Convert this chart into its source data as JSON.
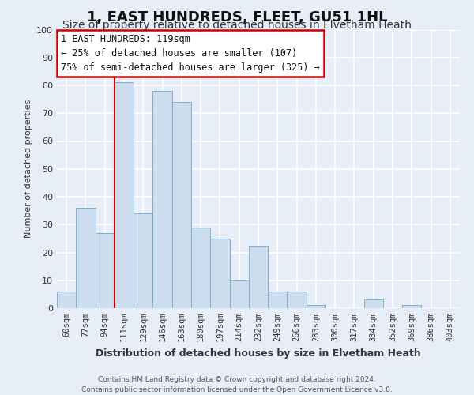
{
  "title": "1, EAST HUNDREDS, FLEET, GU51 1HL",
  "subtitle": "Size of property relative to detached houses in Elvetham Heath",
  "xlabel": "Distribution of detached houses by size in Elvetham Heath",
  "ylabel": "Number of detached properties",
  "bar_labels": [
    "60sqm",
    "77sqm",
    "94sqm",
    "111sqm",
    "129sqm",
    "146sqm",
    "163sqm",
    "180sqm",
    "197sqm",
    "214sqm",
    "232sqm",
    "249sqm",
    "266sqm",
    "283sqm",
    "300sqm",
    "317sqm",
    "334sqm",
    "352sqm",
    "369sqm",
    "386sqm",
    "403sqm"
  ],
  "bar_values": [
    6,
    36,
    27,
    81,
    34,
    78,
    74,
    29,
    25,
    10,
    22,
    6,
    6,
    1,
    0,
    0,
    3,
    0,
    1,
    0,
    0
  ],
  "bar_color": "#ccdded",
  "bar_edge_color": "#7aafd4",
  "vline_x_index": 3,
  "vline_color": "#cc0000",
  "annotation_title": "1 EAST HUNDREDS: 119sqm",
  "annotation_line1": "← 25% of detached houses are smaller (107)",
  "annotation_line2": "75% of semi-detached houses are larger (325) →",
  "annotation_box_color": "#ffffff",
  "annotation_box_edge": "#cc0000",
  "ylim": [
    0,
    100
  ],
  "yticks": [
    0,
    10,
    20,
    30,
    40,
    50,
    60,
    70,
    80,
    90,
    100
  ],
  "footnote1": "Contains HM Land Registry data © Crown copyright and database right 2024.",
  "footnote2": "Contains public sector information licensed under the Open Government Licence v3.0.",
  "bg_color": "#e8eef7",
  "plot_bg_color": "#e8eef7",
  "grid_color": "#ffffff",
  "title_fontsize": 13,
  "subtitle_fontsize": 10,
  "xlabel_fontsize": 9,
  "ylabel_fontsize": 8,
  "tick_fontsize": 7.5,
  "annotation_fontsize": 8.5
}
